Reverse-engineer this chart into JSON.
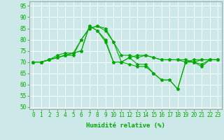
{
  "title": "",
  "xlabel": "Humidité relative (%)",
  "ylabel": "",
  "xlim": [
    -0.5,
    23.5
  ],
  "ylim": [
    49,
    97
  ],
  "yticks": [
    50,
    55,
    60,
    65,
    70,
    75,
    80,
    85,
    90,
    95
  ],
  "xticks": [
    0,
    1,
    2,
    3,
    4,
    5,
    6,
    7,
    8,
    9,
    10,
    11,
    12,
    13,
    14,
    15,
    16,
    17,
    18,
    19,
    20,
    21,
    22,
    23
  ],
  "background_color": "#cce8e8",
  "grid_color": "#ffffff",
  "line_color": "#00aa00",
  "tick_color": "#00aa00",
  "lines": [
    [
      70,
      70,
      71,
      72,
      73,
      73,
      80,
      85,
      86,
      85,
      79,
      73,
      73,
      72,
      73,
      72,
      71,
      71,
      71,
      71,
      70,
      71,
      71,
      71
    ],
    [
      70,
      70,
      71,
      73,
      74,
      74,
      75,
      86,
      84,
      80,
      70,
      70,
      72,
      73,
      73,
      72,
      71,
      71,
      71,
      70,
      71,
      71,
      71,
      71
    ],
    [
      70,
      70,
      71,
      72,
      73,
      74,
      80,
      85,
      86,
      84,
      79,
      70,
      69,
      68,
      68,
      65,
      62,
      62,
      58,
      70,
      70,
      69,
      71,
      71
    ],
    [
      70,
      70,
      71,
      72,
      73,
      74,
      75,
      86,
      84,
      79,
      70,
      70,
      72,
      69,
      69,
      65,
      62,
      62,
      58,
      70,
      70,
      68,
      71,
      71
    ]
  ],
  "line_width": 0.8,
  "marker": "*",
  "marker_size": 3,
  "tick_fontsize": 5.5,
  "xlabel_fontsize": 6.5
}
